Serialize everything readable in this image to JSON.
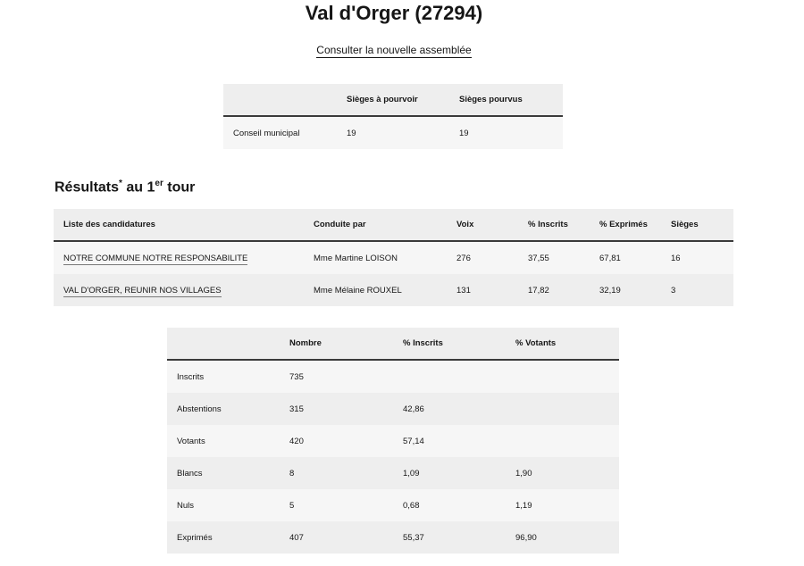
{
  "title": "Val d'Orger (27294)",
  "link": "Consulter la nouvelle assemblée",
  "seats": {
    "headers": [
      "",
      "Sièges à pourvoir",
      "Sièges pourvus"
    ],
    "row": [
      "Conseil municipal",
      "19",
      "19"
    ]
  },
  "results_heading": {
    "pre": "Résultats",
    "star": "*",
    "mid": " au 1",
    "sup": "er",
    "post": " tour"
  },
  "results": {
    "headers": [
      "Liste des candidatures",
      "Conduite par",
      "Voix",
      "% Inscrits",
      "% Exprimés",
      "Sièges"
    ],
    "rows": [
      [
        "NOTRE COMMUNE NOTRE RESPONSABILITE",
        "Mme Martine LOISON",
        "276",
        "37,55",
        "67,81",
        "16"
      ],
      [
        "VAL D'ORGER, REUNIR NOS VILLAGES",
        "Mme Mélaine ROUXEL",
        "131",
        "17,82",
        "32,19",
        "3"
      ]
    ]
  },
  "participation": {
    "headers": [
      "",
      "Nombre",
      "% Inscrits",
      "% Votants"
    ],
    "rows": [
      [
        "Inscrits",
        "735",
        "",
        ""
      ],
      [
        "Abstentions",
        "315",
        "42,86",
        ""
      ],
      [
        "Votants",
        "420",
        "57,14",
        ""
      ],
      [
        "Blancs",
        "8",
        "1,09",
        "1,90"
      ],
      [
        "Nuls",
        "5",
        "0,68",
        "1,19"
      ],
      [
        "Exprimés",
        "407",
        "55,37",
        "96,90"
      ]
    ]
  }
}
